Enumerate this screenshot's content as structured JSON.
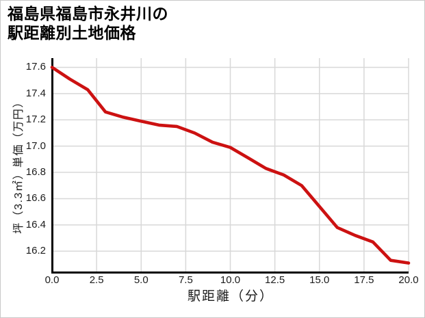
{
  "title": {
    "line1": "福島県福島市永井川の",
    "line2": "駅距離別土地価格"
  },
  "chart_data": {
    "type": "line",
    "title": "福島県福島市永井川の駅距離別土地価格",
    "xlabel": "駅距離（分）",
    "ylabel": "坪（3.3㎡）単価（万円）",
    "x": [
      0,
      1,
      2,
      3,
      4,
      5,
      6,
      7,
      8,
      9,
      10,
      11,
      12,
      13,
      14,
      15,
      16,
      17,
      18,
      19,
      20
    ],
    "values": [
      17.6,
      17.51,
      17.43,
      17.26,
      17.22,
      17.19,
      17.16,
      17.15,
      17.1,
      17.03,
      16.99,
      16.91,
      16.83,
      16.78,
      16.7,
      16.54,
      16.38,
      16.32,
      16.27,
      16.13,
      16.11
    ],
    "xlim": [
      0,
      20
    ],
    "ylim": [
      16.04,
      17.67
    ],
    "xticks": {
      "values": [
        0,
        2.5,
        5,
        7.5,
        10,
        12.5,
        15,
        17.5,
        20
      ],
      "labels": [
        "0.0",
        "2.5",
        "5.0",
        "7.5",
        "10.0",
        "12.5",
        "15.0",
        "17.5",
        "20.0"
      ]
    },
    "yticks": {
      "values": [
        17.6,
        17.4,
        17.2,
        17.0,
        16.8,
        16.6,
        16.4,
        16.2
      ],
      "labels": [
        "17.6",
        "17.4",
        "17.2",
        "17.0",
        "16.8",
        "16.6",
        "16.4",
        "16.2"
      ]
    },
    "grid": true,
    "legend": false
  },
  "colors": {
    "line": "#cc1111",
    "grid": "#d8d8d8",
    "axis": "#000000",
    "text": "#1b1b1b",
    "card_border": "#c8c8c8",
    "background": "#ffffff"
  }
}
